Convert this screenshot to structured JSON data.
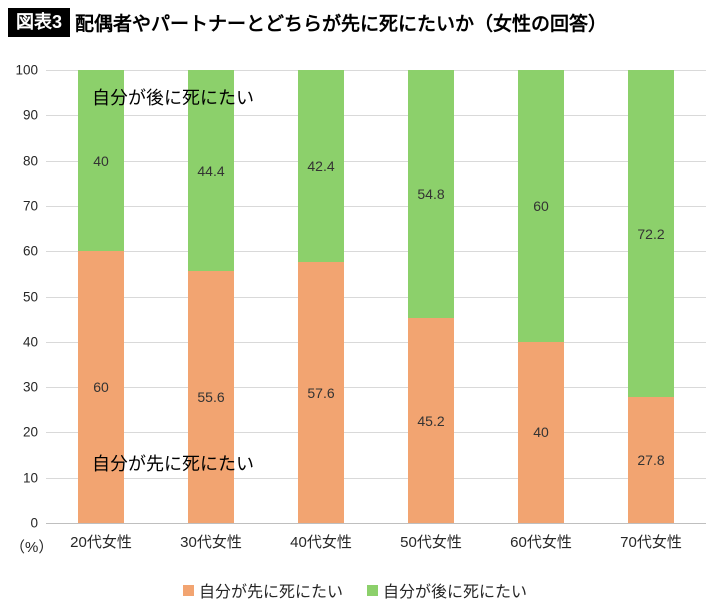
{
  "header": {
    "badge": "図表3",
    "title": "配偶者やパートナーとどちらが先に死にたいか（女性の回答）"
  },
  "chart_data": {
    "type": "bar",
    "stacked": true,
    "title": "配偶者やパートナーとどちらが先に死にたいか（女性の回答）",
    "categories": [
      "20代女性",
      "30代女性",
      "40代女性",
      "50代女性",
      "60代女性",
      "70代女性"
    ],
    "series": [
      {
        "name": "自分が先に死にたい",
        "color": "#f2a471",
        "values": [
          60,
          55.6,
          57.6,
          45.2,
          40,
          27.8
        ]
      },
      {
        "name": "自分が後に死にたい",
        "color": "#8cd06b",
        "values": [
          40,
          44.4,
          42.4,
          54.8,
          60,
          72.2
        ]
      }
    ],
    "ylim": [
      0,
      100
    ],
    "yticks": [
      0,
      10,
      20,
      30,
      40,
      50,
      60,
      70,
      80,
      90,
      100
    ],
    "unit_label": "（%）",
    "grid": true,
    "legend_position": "bottom",
    "annotations": [
      {
        "text": "自分が後に死にたい",
        "position": "top"
      },
      {
        "text": "自分が先に死にたい",
        "position": "bottom"
      }
    ]
  }
}
